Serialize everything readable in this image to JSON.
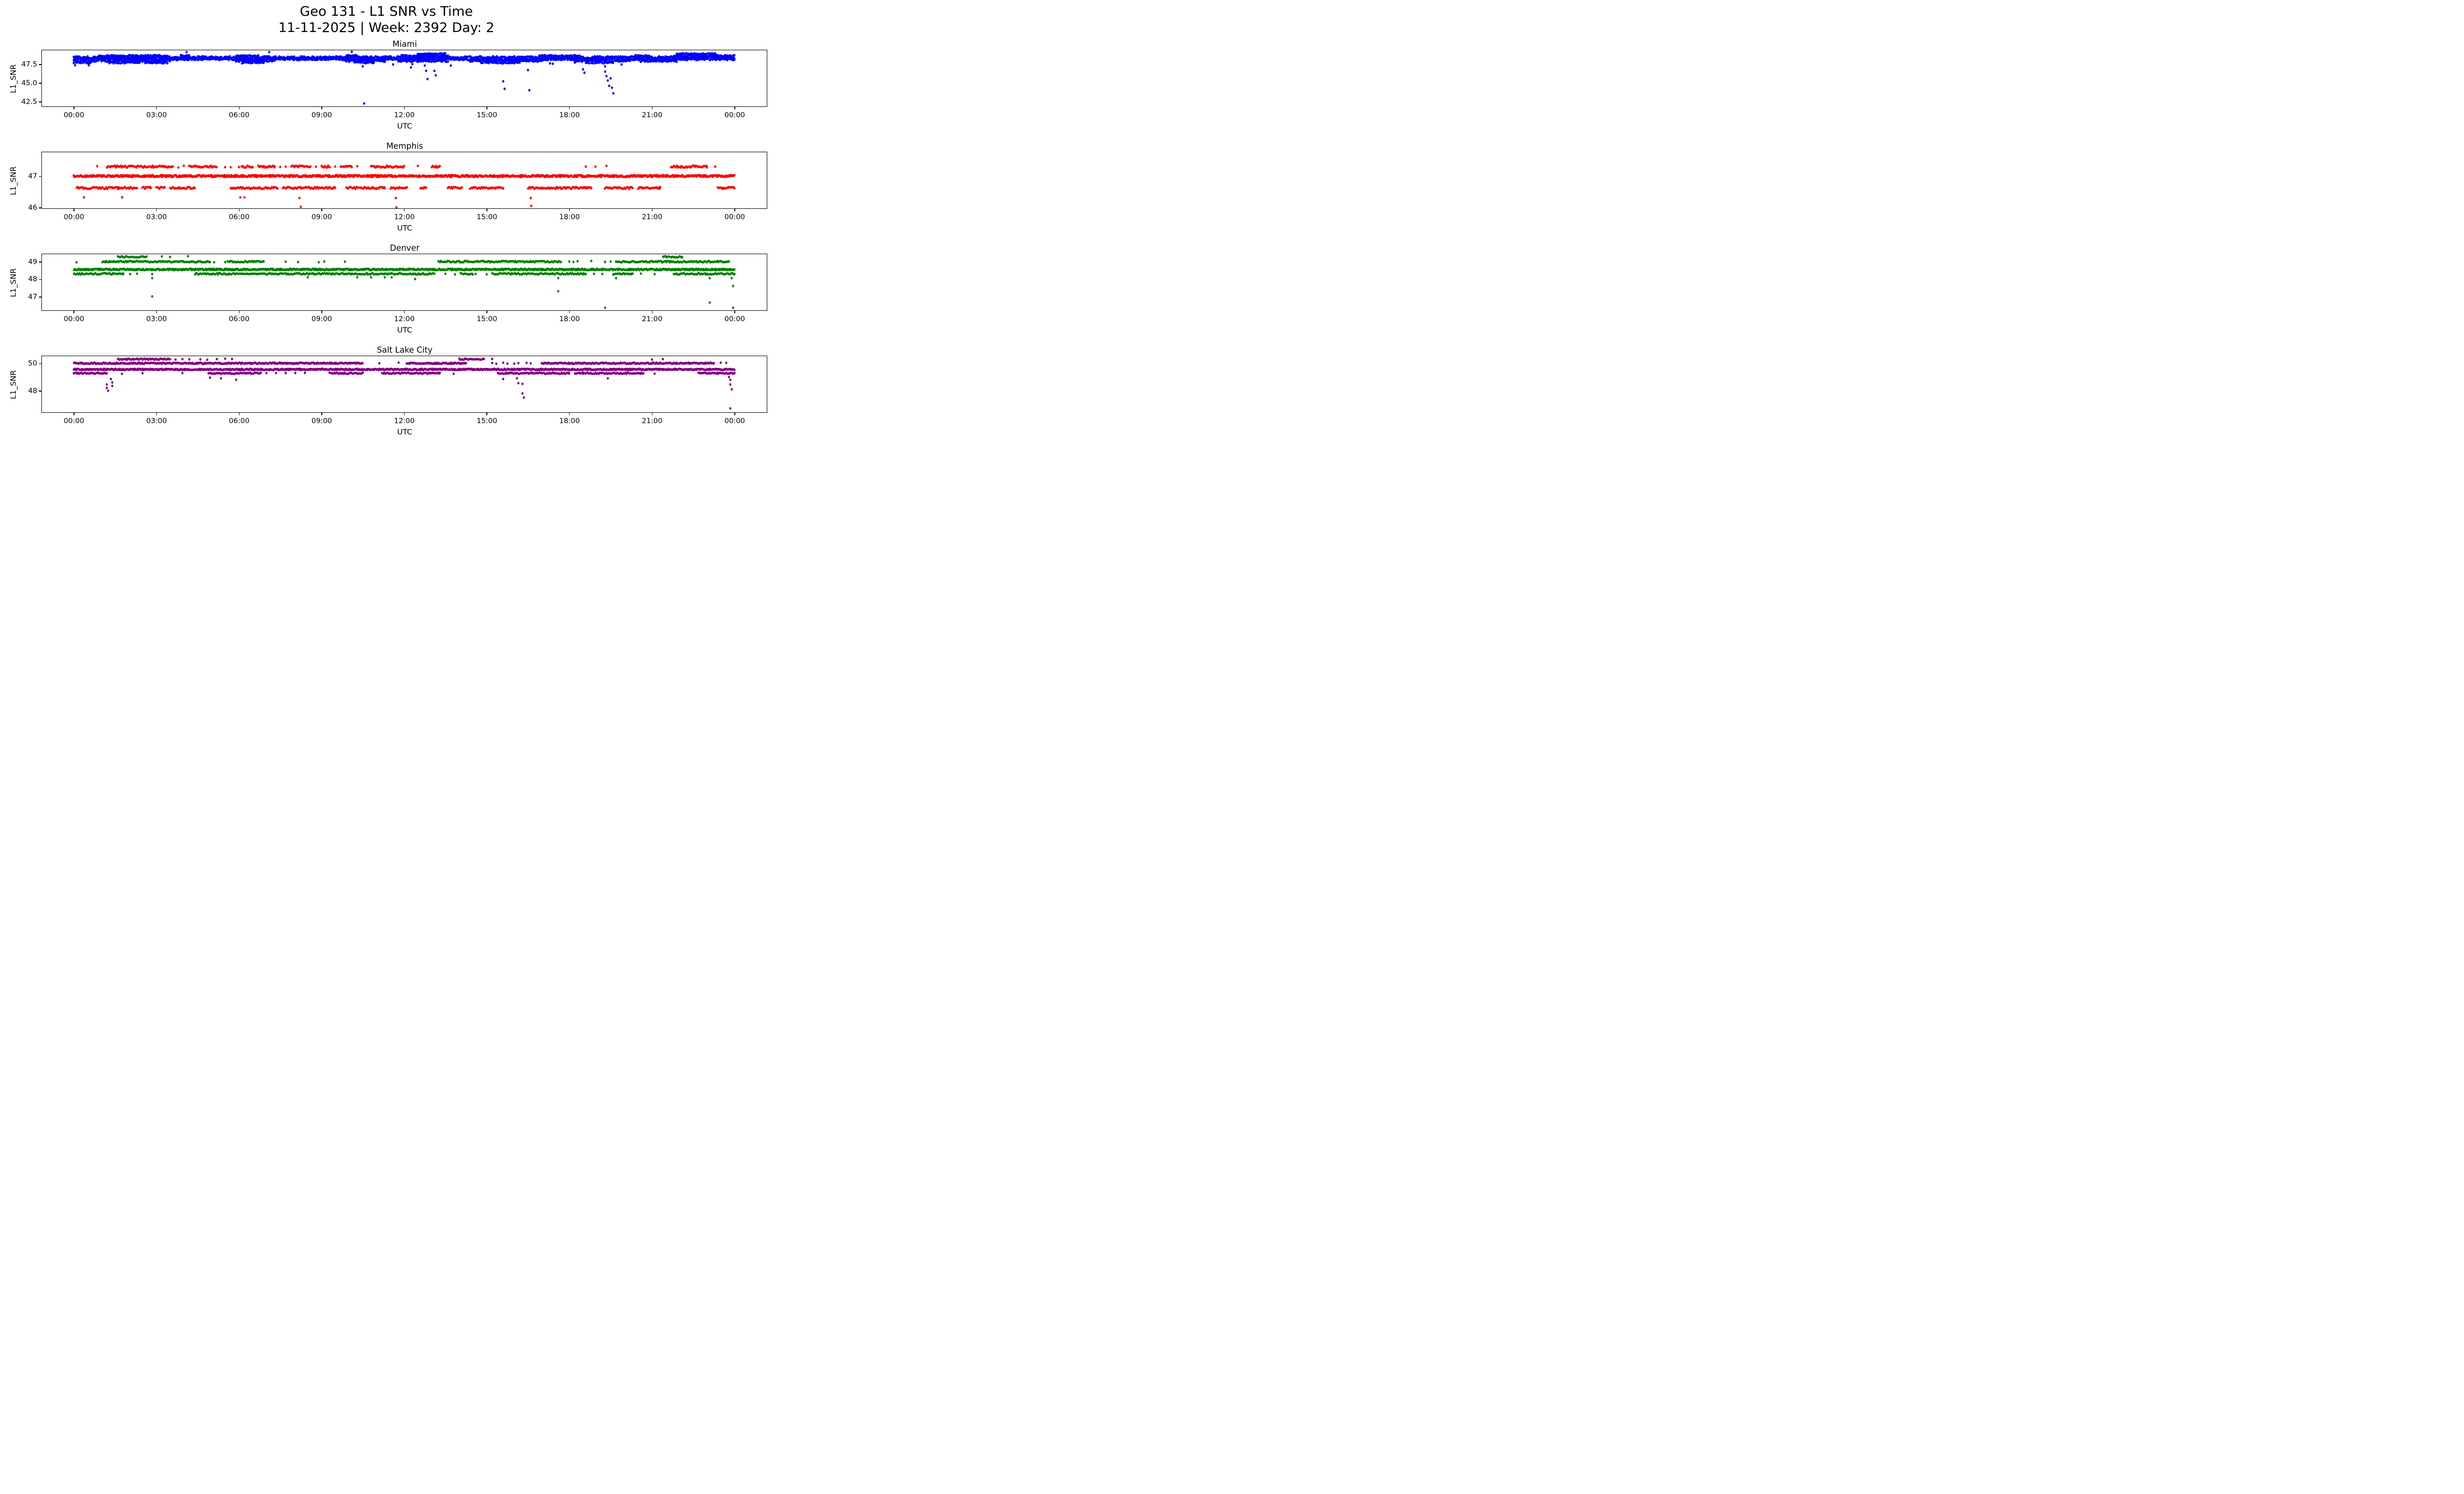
{
  "figure": {
    "suptitle_line1": "Geo 131 - L1 SNR vs Time",
    "suptitle_line2": "11-11-2025 | Week: 2392 Day: 2",
    "background_color": "#ffffff",
    "xlabel": "UTC",
    "ylabel": "L1_SNR",
    "xtick_labels": [
      "00:00",
      "03:00",
      "06:00",
      "09:00",
      "12:00",
      "15:00",
      "18:00",
      "21:00",
      "00:00"
    ],
    "xtick_hours": [
      0,
      3,
      6,
      9,
      12,
      15,
      18,
      21,
      24
    ]
  },
  "chart_data": [
    {
      "type": "scatter",
      "title": "Miami",
      "color": "#0000ff",
      "xlabel": "UTC",
      "ylabel": "L1_SNR",
      "x_hours_range": [
        0,
        24
      ],
      "ylim": [
        41.85,
        49.35
      ],
      "yticks": [
        {
          "label": "47.5",
          "value": 47.5
        },
        {
          "label": "45.0",
          "value": 45.0
        },
        {
          "label": "42.5",
          "value": 42.5
        }
      ],
      "bands": [
        {
          "snr": 48.4,
          "jitter": 0.14,
          "step_min": 2,
          "segments": [
            [
              0,
              24
            ]
          ]
        },
        {
          "snr": 48.15,
          "jitter": 0.12,
          "step_min": 2,
          "segments": [
            [
              0,
              24
            ]
          ]
        },
        {
          "snr": 47.9,
          "jitter": 0.1,
          "step_min": 3,
          "segments": [
            [
              0,
              0.9
            ],
            [
              1.0,
              3.5
            ],
            [
              5.9,
              7.3
            ],
            [
              9.9,
              11.3
            ],
            [
              11.8,
              13.6
            ],
            [
              14.4,
              17.0
            ],
            [
              18.2,
              20.2
            ],
            [
              20.6,
              21.9
            ]
          ]
        },
        {
          "snr": 47.68,
          "jitter": 0.08,
          "step_min": 4,
          "segments": [
            [
              0,
              0.6
            ],
            [
              1.3,
              2.4
            ],
            [
              2.6,
              3.4
            ],
            [
              6.1,
              6.9
            ],
            [
              10.2,
              10.9
            ],
            [
              14.8,
              16.2
            ],
            [
              18.6,
              19.6
            ]
          ]
        },
        {
          "snr": 48.62,
          "jitter": 0.08,
          "step_min": 3,
          "segments": [
            [
              0.9,
              3.4
            ],
            [
              3.9,
              4.2
            ],
            [
              5.9,
              6.7
            ],
            [
              9.9,
              10.3
            ],
            [
              11.9,
              13.6
            ],
            [
              16.9,
              18.4
            ],
            [
              20.4,
              20.9
            ],
            [
              21.8,
              24
            ]
          ]
        },
        {
          "snr": 48.88,
          "jitter": 0.06,
          "step_min": 3,
          "segments": [
            [
              12.5,
              13.5
            ],
            [
              21.9,
              23.3
            ]
          ]
        }
      ],
      "outliers": [
        [
          0.05,
          47.35
        ],
        [
          0.55,
          47.35
        ],
        [
          4.1,
          49.1
        ],
        [
          7.1,
          49.1
        ],
        [
          10.1,
          49.15
        ],
        [
          10.5,
          47.2
        ],
        [
          10.55,
          42.25
        ],
        [
          11.6,
          47.45
        ],
        [
          12.25,
          47.05
        ],
        [
          12.3,
          47.5
        ],
        [
          12.75,
          47.3
        ],
        [
          12.8,
          46.6
        ],
        [
          12.85,
          45.5
        ],
        [
          13.1,
          46.6
        ],
        [
          13.15,
          46.0
        ],
        [
          13.7,
          47.3
        ],
        [
          15.55,
          47.6
        ],
        [
          15.6,
          45.2
        ],
        [
          15.65,
          44.2
        ],
        [
          16.5,
          46.7
        ],
        [
          16.55,
          44.0
        ],
        [
          17.3,
          47.6
        ],
        [
          17.4,
          47.55
        ],
        [
          18.2,
          47.7
        ],
        [
          18.5,
          46.8
        ],
        [
          18.55,
          46.35
        ],
        [
          19.3,
          47.2
        ],
        [
          19.3,
          46.5
        ],
        [
          19.35,
          45.9
        ],
        [
          19.4,
          45.3
        ],
        [
          19.45,
          44.6
        ],
        [
          19.5,
          45.6
        ],
        [
          19.55,
          44.35
        ],
        [
          19.6,
          43.6
        ],
        [
          19.9,
          47.45
        ]
      ]
    },
    {
      "type": "scatter",
      "title": "Memphis",
      "color": "#ff0000",
      "xlabel": "UTC",
      "ylabel": "L1_SNR",
      "x_hours_range": [
        0,
        24
      ],
      "ylim": [
        45.97,
        47.76
      ],
      "yticks": [
        {
          "label": "47",
          "value": 47
        },
        {
          "label": "46",
          "value": 46
        }
      ],
      "bands": [
        {
          "snr": 47.0,
          "jitter": 0.03,
          "step_min": 1.5,
          "segments": [
            [
              0,
              24
            ]
          ]
        },
        {
          "snr": 47.3,
          "jitter": 0.03,
          "step_min": 2.5,
          "segments": [
            [
              1.2,
              3.6
            ],
            [
              4.2,
              5.2
            ],
            [
              6.1,
              6.5
            ],
            [
              6.7,
              7.3
            ],
            [
              7.9,
              8.6
            ],
            [
              9.0,
              9.3
            ],
            [
              9.7,
              10.1
            ],
            [
              10.8,
              12.0
            ],
            [
              13.0,
              13.3
            ],
            [
              21.7,
              23.0
            ]
          ],
          "dots": [
            0.85,
            3.8,
            4.0,
            5.5,
            5.7,
            6.0,
            7.5,
            7.7,
            8.8,
            9.5,
            10.3,
            12.5,
            18.6,
            18.95,
            19.35,
            23.3
          ]
        },
        {
          "snr": 46.62,
          "jitter": 0.03,
          "step_min": 2.5,
          "segments": [
            [
              0.1,
              2.3
            ],
            [
              2.5,
              2.8
            ],
            [
              3.0,
              3.3
            ],
            [
              3.5,
              4.4
            ],
            [
              5.7,
              7.4
            ],
            [
              7.6,
              9.5
            ],
            [
              9.9,
              11.3
            ],
            [
              11.5,
              12.1
            ],
            [
              12.6,
              12.8
            ],
            [
              13.6,
              14.1
            ],
            [
              14.4,
              15.6
            ],
            [
              16.5,
              18.8
            ],
            [
              19.3,
              20.3
            ],
            [
              20.5,
              21.3
            ],
            [
              23.4,
              24
            ]
          ]
        }
      ],
      "outliers": [
        [
          0.37,
          46.32
        ],
        [
          1.76,
          46.32
        ],
        [
          6.05,
          46.32
        ],
        [
          6.2,
          46.32
        ],
        [
          8.2,
          46.3
        ],
        [
          8.25,
          46.02
        ],
        [
          11.7,
          46.3
        ],
        [
          11.72,
          46.0
        ],
        [
          16.6,
          46.3
        ],
        [
          16.62,
          46.05
        ]
      ]
    },
    {
      "type": "scatter",
      "title": "Denver",
      "color": "#008000",
      "xlabel": "UTC",
      "ylabel": "L1_SNR",
      "x_hours_range": [
        0,
        24
      ],
      "ylim": [
        46.2,
        49.43
      ],
      "yticks": [
        {
          "label": "49",
          "value": 49
        },
        {
          "label": "48",
          "value": 48
        },
        {
          "label": "47",
          "value": 47
        }
      ],
      "bands": [
        {
          "snr": 48.55,
          "jitter": 0.04,
          "step_min": 1.5,
          "segments": [
            [
              0,
              24
            ]
          ]
        },
        {
          "snr": 49.0,
          "jitter": 0.04,
          "step_min": 2.5,
          "segments": [
            [
              1.05,
              4.95
            ],
            [
              5.6,
              6.9
            ],
            [
              13.25,
              17.7
            ],
            [
              19.7,
              23.8
            ]
          ],
          "dots": [
            0.1,
            5.1,
            5.5,
            5.95,
            7.7,
            8.15,
            8.9,
            9.1,
            9.85,
            18.0,
            18.15,
            18.3,
            18.8,
            19.3,
            19.5
          ]
        },
        {
          "snr": 49.28,
          "jitter": 0.04,
          "step_min": 3,
          "segments": [
            [
              1.6,
              2.65
            ],
            [
              21.4,
              22.1
            ]
          ],
          "dots": [
            3.2,
            3.5,
            4.15
          ]
        },
        {
          "snr": 48.3,
          "jitter": 0.04,
          "step_min": 2.5,
          "segments": [
            [
              0,
              1.8
            ],
            [
              4.4,
              13.1
            ],
            [
              14.05,
              14.5
            ],
            [
              15.2,
              18.6
            ],
            [
              19.6,
              20.3
            ],
            [
              21.8,
              24
            ]
          ],
          "dots": [
            2.05,
            2.3,
            2.85,
            13.5,
            13.85,
            14.6,
            15.0,
            18.9,
            19.2,
            20.6,
            21.1
          ]
        }
      ],
      "outliers": [
        [
          2.85,
          48.05
        ],
        [
          2.85,
          47.0
        ],
        [
          8.5,
          48.1
        ],
        [
          10.3,
          48.1
        ],
        [
          10.8,
          48.1
        ],
        [
          11.3,
          48.1
        ],
        [
          11.55,
          48.1
        ],
        [
          12.4,
          48.0
        ],
        [
          17.6,
          48.05
        ],
        [
          17.6,
          47.3
        ],
        [
          19.3,
          46.35
        ],
        [
          19.7,
          48.05
        ],
        [
          23.1,
          48.05
        ],
        [
          23.1,
          46.65
        ],
        [
          23.9,
          48.05
        ],
        [
          23.95,
          47.6
        ],
        [
          23.95,
          46.35
        ]
      ]
    },
    {
      "type": "scatter",
      "title": "Salt Lake City",
      "color": "#800080",
      "xlabel": "UTC",
      "ylabel": "L1_SNR",
      "x_hours_range": [
        0,
        24
      ],
      "ylim": [
        46.42,
        50.52
      ],
      "yticks": [
        {
          "label": "50",
          "value": 50
        },
        {
          "label": "48",
          "value": 48
        }
      ],
      "bands": [
        {
          "snr": 49.55,
          "jitter": 0.045,
          "step_min": 1.5,
          "segments": [
            [
              0,
              24
            ]
          ]
        },
        {
          "snr": 50.0,
          "jitter": 0.045,
          "step_min": 2,
          "segments": [
            [
              0,
              10.5
            ],
            [
              12.1,
              14.25
            ],
            [
              17.0,
              23.25
            ]
          ],
          "dots": [
            11.1,
            11.8,
            15.2,
            15.35,
            15.6,
            15.75,
            16.0,
            16.15,
            16.45,
            16.6,
            23.5,
            23.7
          ]
        },
        {
          "snr": 50.3,
          "jitter": 0.045,
          "step_min": 2.5,
          "segments": [
            [
              1.6,
              3.5
            ],
            [
              14.0,
              14.9
            ]
          ],
          "dots": [
            3.7,
            3.95,
            4.2,
            4.6,
            4.85,
            5.2,
            5.5,
            5.75,
            15.2,
            21.0,
            21.4
          ]
        },
        {
          "snr": 49.27,
          "jitter": 0.045,
          "step_min": 2.5,
          "segments": [
            [
              0,
              1.2
            ],
            [
              4.9,
              6.8
            ],
            [
              9.3,
              10.5
            ],
            [
              11.2,
              13.3
            ],
            [
              15.4,
              18.0
            ],
            [
              18.2,
              20.7
            ],
            [
              22.7,
              24
            ]
          ],
          "dots": [
            1.75,
            2.5,
            3.95,
            7.0,
            7.35,
            7.7,
            8.05,
            8.4,
            13.8,
            21.1
          ]
        }
      ],
      "outliers": [
        [
          1.2,
          48.45
        ],
        [
          1.2,
          48.2
        ],
        [
          1.25,
          48.0
        ],
        [
          1.35,
          48.85
        ],
        [
          1.4,
          48.6
        ],
        [
          1.4,
          48.35
        ],
        [
          4.95,
          48.95
        ],
        [
          5.35,
          48.9
        ],
        [
          5.9,
          48.8
        ],
        [
          15.6,
          48.85
        ],
        [
          16.1,
          48.9
        ],
        [
          16.15,
          48.55
        ],
        [
          16.3,
          48.5
        ],
        [
          16.3,
          47.8
        ],
        [
          16.35,
          47.5
        ],
        [
          19.4,
          48.9
        ],
        [
          23.8,
          49.0
        ],
        [
          23.85,
          48.8
        ],
        [
          23.85,
          48.45
        ],
        [
          23.9,
          48.1
        ],
        [
          23.85,
          46.7
        ]
      ]
    }
  ]
}
